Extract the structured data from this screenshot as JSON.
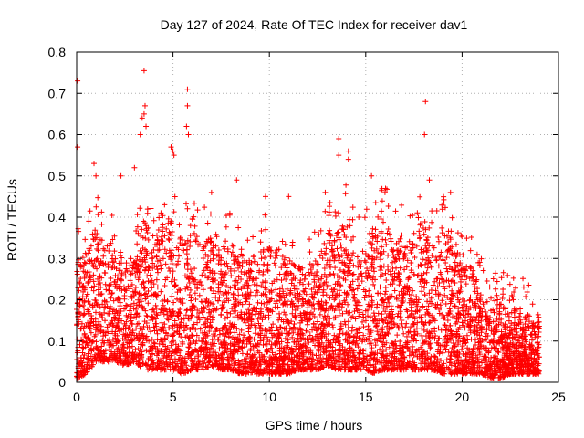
{
  "chart_data": {
    "type": "scatter",
    "title": "Day 127 of 2024, Rate Of TEC Index for receiver dav1",
    "xlabel": "GPS time / hours",
    "ylabel": "ROTI / TECUs",
    "xlim": [
      0,
      25
    ],
    "ylim": [
      0,
      0.8
    ],
    "xticks": [
      "0",
      "5",
      "10",
      "15",
      "20",
      "25"
    ],
    "yticks": [
      "0",
      "0.1",
      "0.2",
      "0.3",
      "0.4",
      "0.5",
      "0.6",
      "0.7",
      "0.8"
    ],
    "grid": true,
    "marker": "plus",
    "series_color": "#ff0000",
    "legend": "none",
    "notable_points": [
      {
        "x": 0.05,
        "y": 0.73
      },
      {
        "x": 0.05,
        "y": 0.57
      },
      {
        "x": 3.5,
        "y": 0.755
      },
      {
        "x": 3.55,
        "y": 0.67
      },
      {
        "x": 3.5,
        "y": 0.65
      },
      {
        "x": 3.4,
        "y": 0.64
      },
      {
        "x": 3.6,
        "y": 0.62
      },
      {
        "x": 3.3,
        "y": 0.6
      },
      {
        "x": 5.75,
        "y": 0.71
      },
      {
        "x": 5.75,
        "y": 0.67
      },
      {
        "x": 5.7,
        "y": 0.62
      },
      {
        "x": 5.8,
        "y": 0.6
      },
      {
        "x": 4.9,
        "y": 0.57
      },
      {
        "x": 5.0,
        "y": 0.56
      },
      {
        "x": 5.05,
        "y": 0.55
      },
      {
        "x": 8.3,
        "y": 0.49
      },
      {
        "x": 13.6,
        "y": 0.59
      },
      {
        "x": 14.1,
        "y": 0.56
      },
      {
        "x": 14.1,
        "y": 0.54
      },
      {
        "x": 13.6,
        "y": 0.55
      },
      {
        "x": 15.3,
        "y": 0.5
      },
      {
        "x": 18.1,
        "y": 0.68
      },
      {
        "x": 18.05,
        "y": 0.6
      },
      {
        "x": 18.3,
        "y": 0.49
      },
      {
        "x": 16.0,
        "y": 0.46
      },
      {
        "x": 19.4,
        "y": 0.46
      },
      {
        "x": 0.9,
        "y": 0.53
      },
      {
        "x": 1.0,
        "y": 0.5
      },
      {
        "x": 2.3,
        "y": 0.5
      },
      {
        "x": 3.0,
        "y": 0.52
      },
      {
        "x": 7.0,
        "y": 0.46
      },
      {
        "x": 9.8,
        "y": 0.45
      },
      {
        "x": 11.0,
        "y": 0.45
      },
      {
        "x": 12.9,
        "y": 0.46
      }
    ],
    "density_envelope": {
      "x_hours": [
        0,
        0.5,
        1,
        1.5,
        2,
        2.5,
        3,
        3.5,
        4,
        4.5,
        5,
        5.5,
        6,
        6.5,
        7,
        7.5,
        8,
        8.5,
        9,
        9.5,
        10,
        10.5,
        11,
        11.5,
        12,
        12.5,
        13,
        13.5,
        14,
        14.5,
        15,
        15.5,
        16,
        16.5,
        17,
        17.5,
        18,
        18.5,
        19,
        19.5,
        20,
        20.5,
        21,
        21.5,
        22,
        22.5,
        23,
        23.5,
        24
      ],
      "typical_max": [
        0.3,
        0.32,
        0.38,
        0.34,
        0.36,
        0.3,
        0.3,
        0.4,
        0.36,
        0.38,
        0.42,
        0.34,
        0.4,
        0.34,
        0.36,
        0.32,
        0.34,
        0.32,
        0.3,
        0.32,
        0.34,
        0.28,
        0.3,
        0.28,
        0.28,
        0.3,
        0.36,
        0.38,
        0.4,
        0.32,
        0.36,
        0.38,
        0.4,
        0.34,
        0.36,
        0.34,
        0.4,
        0.36,
        0.38,
        0.36,
        0.28,
        0.28,
        0.22,
        0.18,
        0.2,
        0.18,
        0.18,
        0.16,
        0.16
      ],
      "typical_min": [
        0.01,
        0.02,
        0.05,
        0.05,
        0.05,
        0.04,
        0.05,
        0.03,
        0.03,
        0.03,
        0.03,
        0.02,
        0.03,
        0.03,
        0.04,
        0.03,
        0.03,
        0.02,
        0.02,
        0.02,
        0.02,
        0.02,
        0.02,
        0.03,
        0.03,
        0.03,
        0.04,
        0.03,
        0.03,
        0.03,
        0.03,
        0.02,
        0.03,
        0.03,
        0.03,
        0.03,
        0.03,
        0.03,
        0.02,
        0.02,
        0.02,
        0.02,
        0.02,
        0.01,
        0.01,
        0.02,
        0.02,
        0.02,
        0.02
      ]
    }
  }
}
